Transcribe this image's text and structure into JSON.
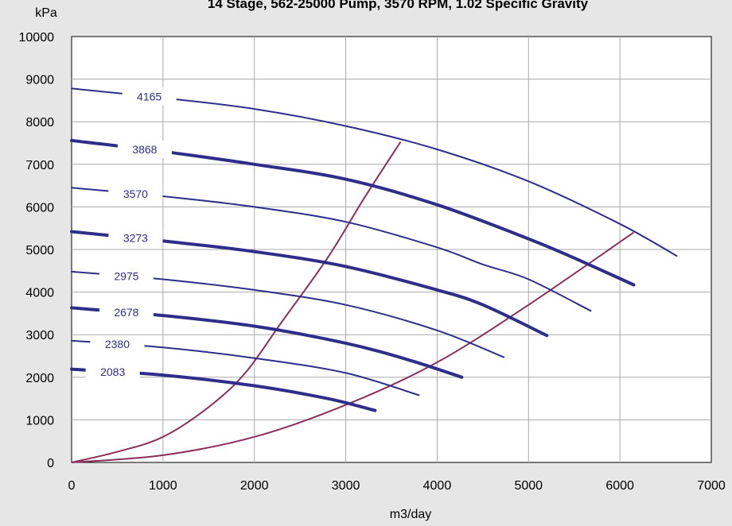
{
  "chart_data": {
    "type": "line",
    "title": "14 Stage, 562-25000 Pump, 3570 RPM, 1.02 Specific Gravity",
    "xlabel": "m3/day",
    "ylabel": "kPa",
    "xlim": [
      0,
      7000
    ],
    "ylim": [
      0,
      10000
    ],
    "xticks": [
      0,
      1000,
      2000,
      3000,
      4000,
      5000,
      6000,
      7000
    ],
    "yticks": [
      0,
      1000,
      2000,
      3000,
      4000,
      5000,
      6000,
      7000,
      8000,
      9000,
      10000
    ],
    "grid": true,
    "colors": {
      "curve": "#2e2e8a",
      "limit": "#8a2f5c",
      "plot_bg": "#ffffff",
      "page_bg": "#e6e6e6",
      "grid": "#aaaaaa"
    },
    "series": [
      {
        "name": "4165",
        "thick": false,
        "label_at": 850,
        "x": [
          0,
          1000,
          2000,
          3000,
          4000,
          5000,
          6000,
          6620
        ],
        "y": [
          8780,
          8560,
          8300,
          7900,
          7350,
          6600,
          5600,
          4850
        ]
      },
      {
        "name": "3868",
        "thick": true,
        "label_at": 800,
        "x": [
          0,
          1000,
          2000,
          3000,
          4000,
          5000,
          5500,
          6150
        ],
        "y": [
          7560,
          7300,
          7000,
          6650,
          6050,
          5250,
          4800,
          4170
        ]
      },
      {
        "name": "3570",
        "thick": false,
        "label_at": 700,
        "x": [
          0,
          1000,
          2000,
          3000,
          4000,
          4500,
          5000,
          5680
        ],
        "y": [
          6450,
          6250,
          6000,
          5650,
          5050,
          4650,
          4300,
          3560
        ]
      },
      {
        "name": "3273",
        "thick": true,
        "label_at": 700,
        "x": [
          0,
          1000,
          2000,
          3000,
          4000,
          4500,
          5200
        ],
        "y": [
          5420,
          5200,
          4950,
          4600,
          4050,
          3700,
          2980
        ]
      },
      {
        "name": "2975",
        "thick": false,
        "label_at": 600,
        "x": [
          0,
          1000,
          2000,
          3000,
          4000,
          4730
        ],
        "y": [
          4480,
          4300,
          4050,
          3700,
          3100,
          2470
        ]
      },
      {
        "name": "2678",
        "thick": true,
        "label_at": 600,
        "x": [
          0,
          1000,
          2000,
          3000,
          3700,
          4270
        ],
        "y": [
          3630,
          3450,
          3200,
          2800,
          2400,
          2000
        ]
      },
      {
        "name": "2380",
        "thick": false,
        "label_at": 500,
        "x": [
          0,
          1000,
          2000,
          3000,
          3800
        ],
        "y": [
          2860,
          2700,
          2450,
          2100,
          1580
        ]
      },
      {
        "name": "2083",
        "thick": true,
        "label_at": 450,
        "x": [
          0,
          1000,
          2000,
          2800,
          3320
        ],
        "y": [
          2190,
          2050,
          1800,
          1500,
          1220
        ]
      }
    ],
    "limits": [
      {
        "x": [
          0,
          500,
          1000,
          1500,
          1900,
          2300,
          2800,
          3200,
          3600
        ],
        "y": [
          0,
          250,
          600,
          1300,
          2100,
          3300,
          4800,
          6200,
          7530
        ]
      },
      {
        "x": [
          0,
          1000,
          2000,
          3000,
          4000,
          5000,
          6150
        ],
        "y": [
          0,
          170,
          600,
          1350,
          2350,
          3700,
          5400
        ]
      }
    ]
  }
}
